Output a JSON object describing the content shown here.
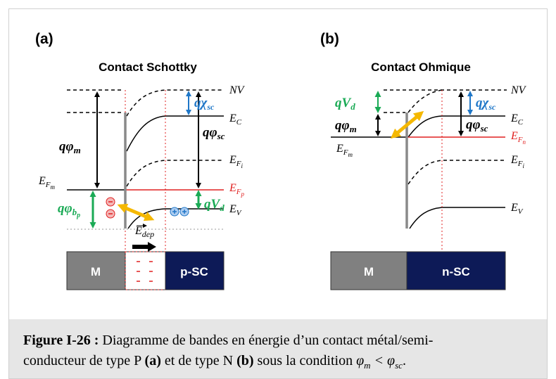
{
  "panel_a": {
    "tag": "(a)",
    "title": "Contact Schottky",
    "labels": {
      "nv": "NV",
      "ec": [
        "E",
        "C"
      ],
      "efi": [
        "E",
        "F",
        "i"
      ],
      "efp": [
        "E",
        "F",
        "p"
      ],
      "ev": [
        "E",
        "V"
      ],
      "efm": [
        "E",
        "F",
        "m"
      ],
      "qphim": [
        "qφ",
        "m"
      ],
      "qphisc": [
        "qφ",
        "sc"
      ],
      "qchisc": [
        "qχ",
        "sc"
      ],
      "qphib": [
        "qφ",
        "b",
        "p"
      ],
      "qvd": [
        "qV",
        "d"
      ],
      "edep": [
        "E",
        "dep"
      ]
    },
    "blocks": [
      "M",
      "p-SC"
    ]
  },
  "panel_b": {
    "tag": "(b)",
    "title": "Contact Ohmique",
    "labels": {
      "qvd": [
        "qV",
        "d"
      ],
      "qphim": [
        "qφ",
        "m"
      ],
      "qchisc": [
        "qχ",
        "sc"
      ],
      "qphisc": [
        "qφ",
        "sc"
      ],
      "nv": "NV",
      "ec": [
        "E",
        "C"
      ],
      "efn": [
        "E",
        "F",
        "n"
      ],
      "efm": [
        "E",
        "F",
        "m"
      ],
      "efi": [
        "E",
        "F",
        "i"
      ],
      "ev": [
        "E",
        "V"
      ]
    },
    "blocks": [
      "M",
      "n-SC"
    ]
  },
  "caption": {
    "label": "Figure I-26 :",
    "text1": " Diagramme de bandes en énergie d’un contact métal/semi-",
    "text2": "conducteur de type P ",
    "ref_a": "(a)",
    "text3": " et de type N ",
    "ref_b": "(b)",
    "text4": " sous la condition ",
    "math": [
      "φ",
      "m",
      " < ",
      "φ",
      "sc",
      "."
    ]
  }
}
